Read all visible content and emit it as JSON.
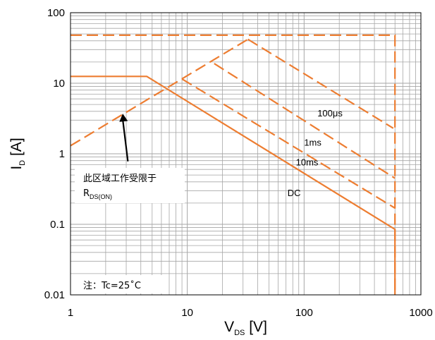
{
  "chart_data": {
    "type": "line",
    "x_scale": "log",
    "y_scale": "log",
    "xlim": [
      1,
      1000
    ],
    "ylim": [
      0.01,
      100
    ],
    "xlabel": {
      "main": "V",
      "sub": "DS",
      "unit": " [V]"
    },
    "ylabel": {
      "main": "I",
      "sub": "D",
      "unit": " [A]"
    },
    "x_ticks": [
      {
        "value": 1,
        "label": "1"
      },
      {
        "value": 10,
        "label": "10"
      },
      {
        "value": 100,
        "label": "100"
      },
      {
        "value": 1000,
        "label": "1000"
      }
    ],
    "y_ticks": [
      {
        "value": 100,
        "label": "100"
      },
      {
        "value": 10,
        "label": "10"
      },
      {
        "value": 1,
        "label": "1"
      },
      {
        "value": 0.1,
        "label": "0.1"
      },
      {
        "value": 0.01,
        "label": "0.01"
      }
    ],
    "grid": true,
    "series": [
      {
        "name": "DC",
        "style": "solid",
        "points": [
          [
            1,
            12.5
          ],
          [
            4.5,
            12.5
          ],
          [
            600,
            0.085
          ],
          [
            600,
            0.01
          ]
        ]
      },
      {
        "name": "10ms",
        "style": "dashed",
        "points": [
          [
            9,
            11.5
          ],
          [
            600,
            0.17
          ]
        ]
      },
      {
        "name": "1ms",
        "style": "dashed",
        "points": [
          [
            17,
            19
          ],
          [
            600,
            0.45
          ]
        ]
      },
      {
        "name": "100μs",
        "style": "dashed",
        "points": [
          [
            33,
            42
          ],
          [
            580,
            2.3
          ]
        ]
      },
      {
        "name": "",
        "style": "dashed",
        "points": [
          [
            1,
            1.3
          ],
          [
            33,
            42
          ]
        ]
      },
      {
        "name": "",
        "style": "dashed",
        "points": [
          [
            1,
            48
          ],
          [
            600,
            48
          ],
          [
            600,
            0.01
          ]
        ]
      }
    ],
    "labels": [
      {
        "text": "100μs",
        "x": 130,
        "y": 3.4
      },
      {
        "text": "1ms",
        "x": 100,
        "y": 1.3
      },
      {
        "text": "10ms",
        "x": 85,
        "y": 0.68
      },
      {
        "text": "DC",
        "x": 72,
        "y": 0.25
      }
    ],
    "annotation": {
      "line1": "此区域工作受限于",
      "line2_main": "R",
      "line2_sub": "DS(ON)",
      "arrow_tip": {
        "x": 2.8,
        "y": 3.7
      },
      "arrow_tail": {
        "x": 3.1,
        "y": 0.78
      }
    },
    "note": "注：Tc=25˚C"
  },
  "colors": {
    "curve": "#ED7D31",
    "grid": "#a6a6a6",
    "axis": "#000000",
    "note_bg": "#ffffff"
  }
}
